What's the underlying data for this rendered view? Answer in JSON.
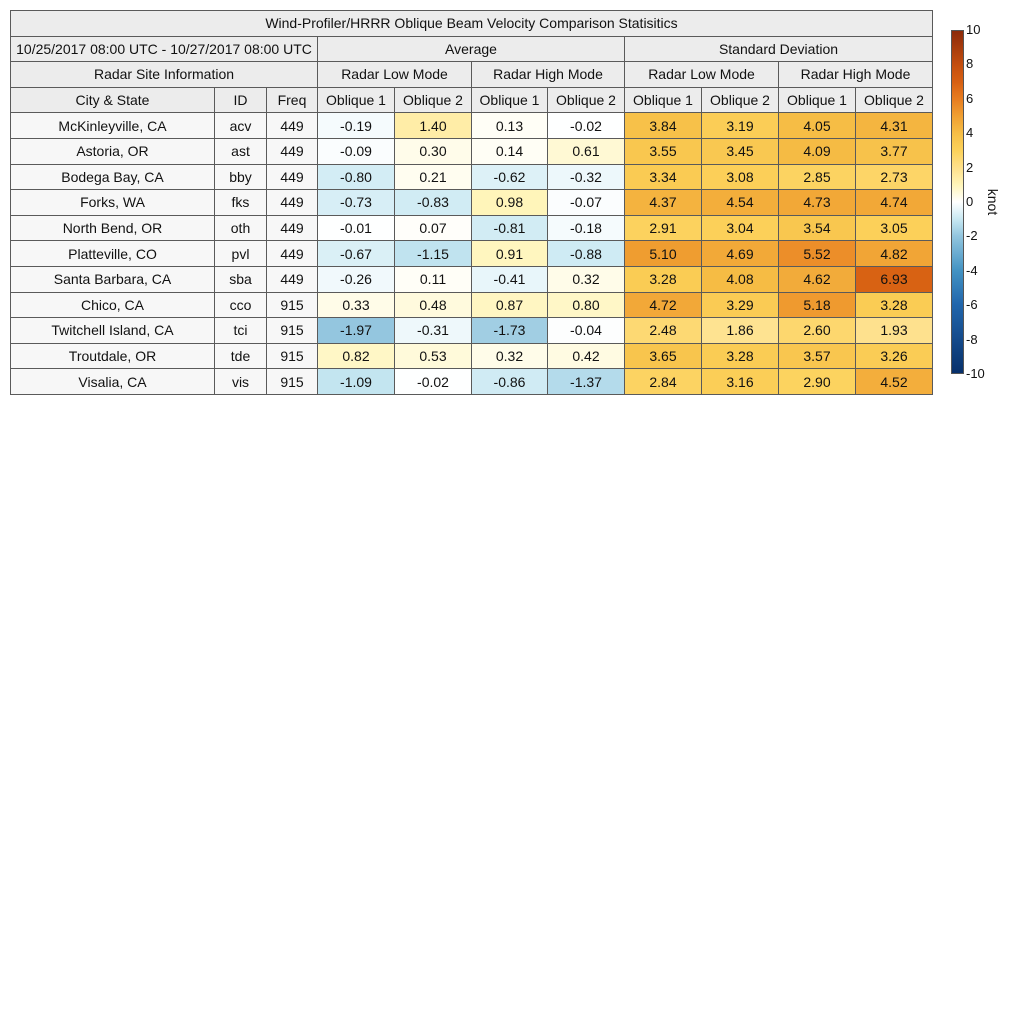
{
  "chart_data": {
    "type": "heatmap",
    "title": "Wind-Profiler/HRRR Oblique Beam Velocity Comparison Statisitics",
    "date_range": "10/25/2017 08:00 UTC - 10/27/2017 08:00 UTC",
    "site_info_header": "Radar Site Information",
    "group_headers": [
      "Average",
      "Standard Deviation"
    ],
    "mode_headers": [
      "Radar Low Mode",
      "Radar High Mode",
      "Radar Low Mode",
      "Radar High Mode"
    ],
    "column_headers": [
      "City & State",
      "ID",
      "Freq",
      "Oblique 1",
      "Oblique 2",
      "Oblique 1",
      "Oblique 2",
      "Oblique 1",
      "Oblique 2",
      "Oblique 1",
      "Oblique 2"
    ],
    "rows": [
      {
        "city": "McKinleyville, CA",
        "id": "acv",
        "freq": "449",
        "values": [
          "-0.19",
          "1.40",
          "0.13",
          "-0.02",
          "3.84",
          "3.19",
          "4.05",
          "4.31"
        ]
      },
      {
        "city": "Astoria, OR",
        "id": "ast",
        "freq": "449",
        "values": [
          "-0.09",
          "0.30",
          "0.14",
          "0.61",
          "3.55",
          "3.45",
          "4.09",
          "3.77"
        ]
      },
      {
        "city": "Bodega Bay, CA",
        "id": "bby",
        "freq": "449",
        "values": [
          "-0.80",
          "0.21",
          "-0.62",
          "-0.32",
          "3.34",
          "3.08",
          "2.85",
          "2.73"
        ]
      },
      {
        "city": "Forks, WA",
        "id": "fks",
        "freq": "449",
        "values": [
          "-0.73",
          "-0.83",
          "0.98",
          "-0.07",
          "4.37",
          "4.54",
          "4.73",
          "4.74"
        ]
      },
      {
        "city": "North Bend, OR",
        "id": "oth",
        "freq": "449",
        "values": [
          "-0.01",
          "0.07",
          "-0.81",
          "-0.18",
          "2.91",
          "3.04",
          "3.54",
          "3.05"
        ]
      },
      {
        "city": "Platteville, CO",
        "id": "pvl",
        "freq": "449",
        "values": [
          "-0.67",
          "-1.15",
          "0.91",
          "-0.88",
          "5.10",
          "4.69",
          "5.52",
          "4.82"
        ]
      },
      {
        "city": "Santa Barbara, CA",
        "id": "sba",
        "freq": "449",
        "values": [
          "-0.26",
          "0.11",
          "-0.41",
          "0.32",
          "3.28",
          "4.08",
          "4.62",
          "6.93"
        ]
      },
      {
        "city": "Chico, CA",
        "id": "cco",
        "freq": "915",
        "values": [
          "0.33",
          "0.48",
          "0.87",
          "0.80",
          "4.72",
          "3.29",
          "5.18",
          "3.28"
        ]
      },
      {
        "city": "Twitchell Island, CA",
        "id": "tci",
        "freq": "915",
        "values": [
          "-1.97",
          "-0.31",
          "-1.73",
          "-0.04",
          "2.48",
          "1.86",
          "2.60",
          "1.93"
        ]
      },
      {
        "city": "Troutdale, OR",
        "id": "tde",
        "freq": "915",
        "values": [
          "0.82",
          "0.53",
          "0.32",
          "0.42",
          "3.65",
          "3.28",
          "3.57",
          "3.26"
        ]
      },
      {
        "city": "Visalia, CA",
        "id": "vis",
        "freq": "915",
        "values": [
          "-1.09",
          "-0.02",
          "-0.86",
          "-1.37",
          "2.84",
          "3.16",
          "2.90",
          "4.52"
        ]
      }
    ],
    "colorbar": {
      "unit": "knot",
      "range": [
        -10,
        10
      ],
      "ticks": [
        "10",
        "8",
        "6",
        "4",
        "2",
        "0",
        "-2",
        "-4",
        "-6",
        "-8",
        "-10"
      ],
      "colormap": "diverging blue-white-orange",
      "low_color": "#08306b",
      "mid_color": "#ffffff",
      "high_color": "#8c2a0a"
    }
  }
}
